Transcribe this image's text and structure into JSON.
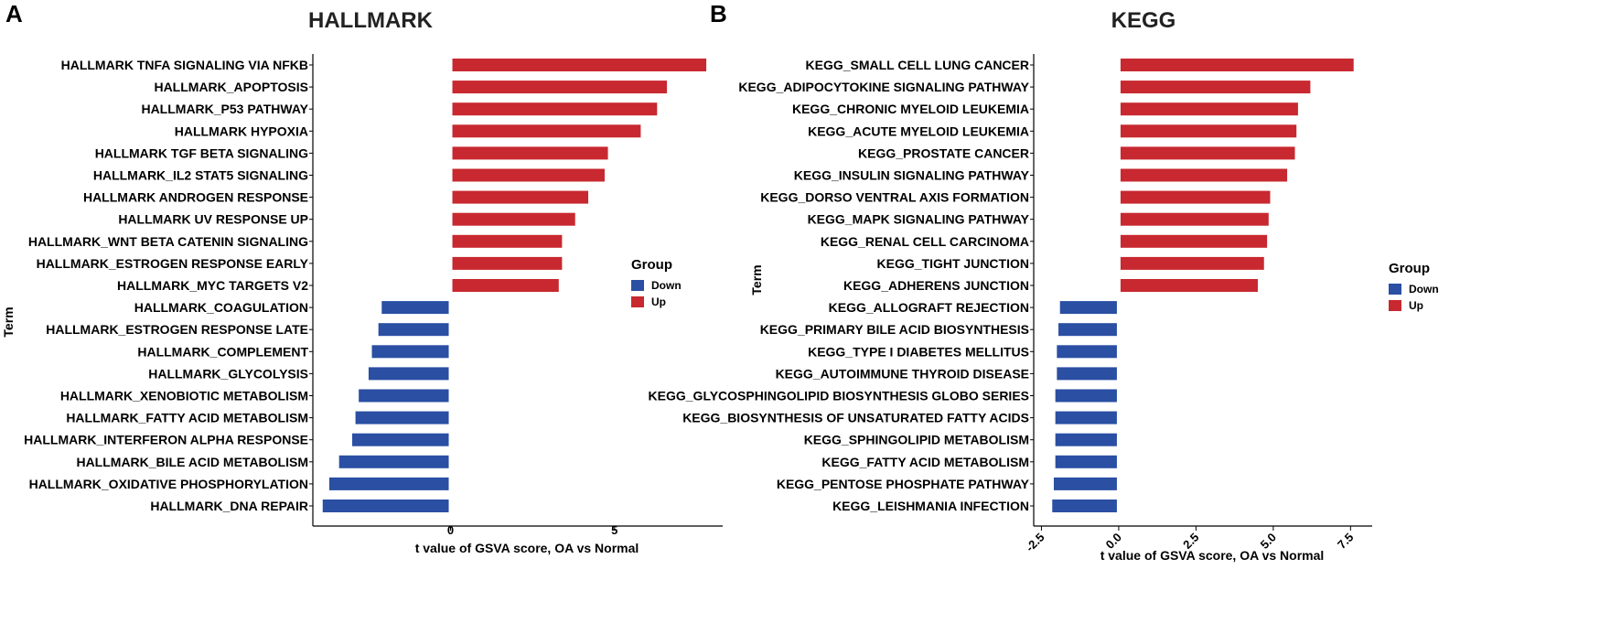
{
  "chart_data": [
    {
      "type": "bar",
      "orientation": "horizontal",
      "panel_label": "A",
      "title": "HALLMARK",
      "ylabel": "Term",
      "xlabel": "t value of GSVA score, OA vs Normal",
      "xlim": [
        -4.2,
        8.3
      ],
      "xticks": [
        0,
        5
      ],
      "xtick_labels": [
        "0",
        "5"
      ],
      "xtick_rotation": 0,
      "legend": {
        "title": "Group",
        "entries": [
          {
            "label": "Down",
            "color": "#2a4fa3"
          },
          {
            "label": "Up",
            "color": "#c8282f"
          }
        ]
      },
      "categories": [
        "HALLMARK TNFA SIGNALING VIA NFKB",
        "HALLMARK_APOPTOSIS",
        "HALLMARK_P53 PATHWAY",
        "HALLMARK HYPOXIA",
        "HALLMARK TGF BETA SIGNALING",
        "HALLMARK_IL2 STAT5 SIGNALING",
        "HALLMARK ANDROGEN RESPONSE",
        "HALLMARK UV RESPONSE UP",
        "HALLMARK_WNT BETA CATENIN SIGNALING",
        "HALLMARK_ESTROGEN RESPONSE EARLY",
        "HALLMARK_MYC TARGETS V2",
        "HALLMARK_COAGULATION",
        "HALLMARK_ESTROGEN RESPONSE LATE",
        "HALLMARK_COMPLEMENT",
        "HALLMARK_GLYCOLYSIS",
        "HALLMARK_XENOBIOTIC METABOLISM",
        "HALLMARK_FATTY ACID METABOLISM",
        "HALLMARK_INTERFERON ALPHA RESPONSE",
        "HALLMARK_BILE ACID METABOLISM",
        "HALLMARK_OXIDATIVE PHOSPHORYLATION",
        "HALLMARK_DNA REPAIR"
      ],
      "values": [
        7.8,
        6.6,
        6.3,
        5.8,
        4.8,
        4.7,
        4.2,
        3.8,
        3.4,
        3.4,
        3.3,
        -2.1,
        -2.2,
        -2.4,
        -2.5,
        -2.8,
        -2.9,
        -3.0,
        -3.4,
        -3.7,
        -3.9
      ],
      "groups": [
        "Up",
        "Up",
        "Up",
        "Up",
        "Up",
        "Up",
        "Up",
        "Up",
        "Up",
        "Up",
        "Up",
        "Down",
        "Down",
        "Down",
        "Down",
        "Down",
        "Down",
        "Down",
        "Down",
        "Down",
        "Down"
      ]
    },
    {
      "type": "bar",
      "orientation": "horizontal",
      "panel_label": "B",
      "title": "KEGG",
      "ylabel": "Term",
      "xlabel": "t value of GSVA score, OA vs Normal",
      "xlim": [
        -2.75,
        8.2
      ],
      "xticks": [
        -2.5,
        0,
        2.5,
        5,
        7.5
      ],
      "xtick_labels": [
        "-2.5",
        "0.0",
        "2.5",
        "5.0",
        "7.5"
      ],
      "xtick_rotation": -45,
      "legend": {
        "title": "Group",
        "entries": [
          {
            "label": "Down",
            "color": "#2a4fa3"
          },
          {
            "label": "Up",
            "color": "#c8282f"
          }
        ]
      },
      "categories": [
        "KEGG_SMALL CELL LUNG CANCER",
        "KEGG_ADIPOCYTOKINE SIGNALING PATHWAY",
        "KEGG_CHRONIC MYELOID LEUKEMIA",
        "KEGG_ACUTE MYELOID LEUKEMIA",
        "KEGG_PROSTATE CANCER",
        "KEGG_INSULIN SIGNALING PATHWAY",
        "KEGG_DORSO VENTRAL AXIS FORMATION",
        "KEGG_MAPK SIGNALING PATHWAY",
        "KEGG_RENAL CELL CARCINOMA",
        "KEGG_TIGHT JUNCTION",
        "KEGG_ADHERENS JUNCTION",
        "KEGG_ALLOGRAFT REJECTION",
        "KEGG_PRIMARY BILE ACID BIOSYNTHESIS",
        "KEGG_TYPE I DIABETES MELLITUS",
        "KEGG_AUTOIMMUNE THYROID DISEASE",
        "KEGG_GLYCOSPHINGOLIPID BIOSYNTHESIS GLOBO SERIES",
        "KEGG_BIOSYNTHESIS OF UNSATURATED FATTY ACIDS",
        "KEGG_SPHINGOLIPID METABOLISM",
        "KEGG_FATTY ACID METABOLISM",
        "KEGG_PENTOSE PHOSPHATE PATHWAY",
        "KEGG_LEISHMANIA INFECTION"
      ],
      "values": [
        7.6,
        6.2,
        5.8,
        5.75,
        5.7,
        5.45,
        4.9,
        4.85,
        4.8,
        4.7,
        4.5,
        -1.9,
        -1.95,
        -2.0,
        -2.0,
        -2.05,
        -2.05,
        -2.05,
        -2.05,
        -2.1,
        -2.15
      ],
      "groups": [
        "Up",
        "Up",
        "Up",
        "Up",
        "Up",
        "Up",
        "Up",
        "Up",
        "Up",
        "Up",
        "Up",
        "Down",
        "Down",
        "Down",
        "Down",
        "Down",
        "Down",
        "Down",
        "Down",
        "Down",
        "Down"
      ]
    }
  ]
}
